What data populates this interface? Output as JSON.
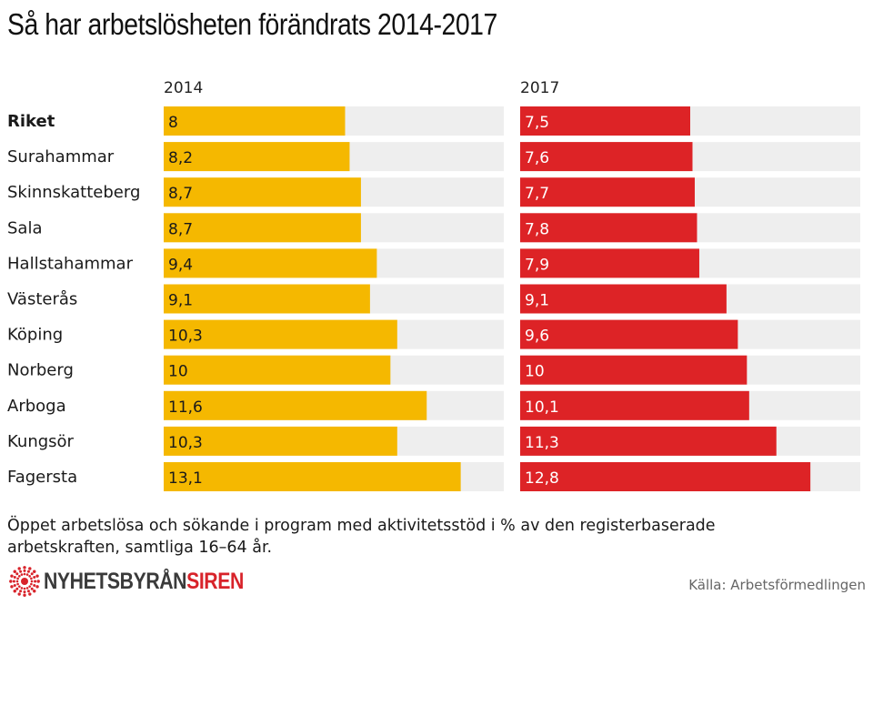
{
  "title": "Så har arbetslösheten förändrats 2014-2017",
  "colors": {
    "y2014": "#F5B800",
    "y2017": "#DD2326",
    "track": "#EEEEEE"
  },
  "chart_data": {
    "type": "bar",
    "orientation": "horizontal",
    "categories": [
      "Riket",
      "Surahammar",
      "Skinnskatteberg",
      "Sala",
      "Hallstahammar",
      "Västerås",
      "Köping",
      "Norberg",
      "Arboga",
      "Kungsör",
      "Fagersta"
    ],
    "series": [
      {
        "name": "2014",
        "values": [
          8,
          8.2,
          8.7,
          8.7,
          9.4,
          9.1,
          10.3,
          10,
          11.6,
          10.3,
          13.1
        ],
        "labels": [
          "8",
          "8,2",
          "8,7",
          "8,7",
          "9,4",
          "9,1",
          "10,3",
          "10",
          "11,6",
          "10,3",
          "13,1"
        ]
      },
      {
        "name": "2017",
        "values": [
          7.5,
          7.6,
          7.7,
          7.8,
          7.9,
          9.1,
          9.6,
          10,
          10.1,
          11.3,
          12.8
        ],
        "labels": [
          "7,5",
          "7,6",
          "7,7",
          "7,8",
          "7,9",
          "9,1",
          "9,6",
          "10",
          "10,1",
          "11,3",
          "12,8"
        ]
      }
    ],
    "xlim": [
      0,
      15
    ],
    "highlight_category": "Riket"
  },
  "note": "Öppet arbetslösa och sökande i program med aktivitetsstöd i % av den registerbaserade arbetskraften, samtliga 16–64 år.",
  "logo": {
    "part1": "NYHETSBYRÅN",
    "part2": "SIREN"
  },
  "source": "Källa: Arbetsförmedlingen"
}
